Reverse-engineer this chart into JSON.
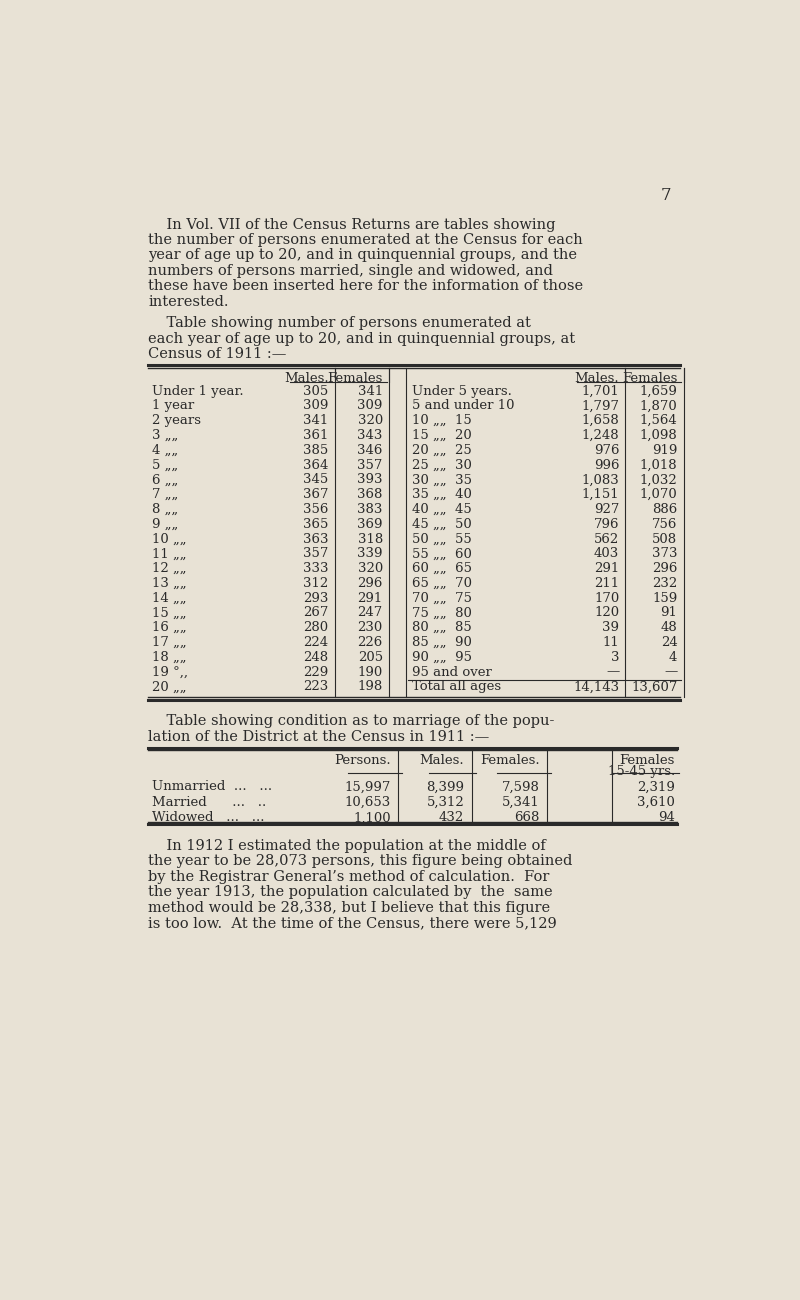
{
  "bg_color": "#e8e2d5",
  "text_color": "#2a2a2a",
  "page_number": "7",
  "intro_text_lines": [
    "    In Vol. VII of the Census Returns are tables showing",
    "the number of persons enumerated at the Census for each",
    "year of age up to 20, and in quinquennial groups, and the",
    "numbers of persons married, single and widowed, and",
    "these have been inserted here for the information of those",
    "interested."
  ],
  "table1_title_lines": [
    "    Table showing number of persons enumerated at",
    "each year of age up to 20, and in quinquennial groups, at",
    "Census of 1911 :—"
  ],
  "table1_left_rows": [
    [
      "Under 1 year.",
      "305",
      "341"
    ],
    [
      "1 year",
      "309",
      "309"
    ],
    [
      "2 years",
      "341",
      "320"
    ],
    [
      "3 „„",
      "361",
      "343"
    ],
    [
      "4 „„",
      "385",
      "346"
    ],
    [
      "5 „„",
      "364",
      "357"
    ],
    [
      "6 „„",
      "345",
      "393"
    ],
    [
      "7 „„",
      "367",
      "368"
    ],
    [
      "8 „„",
      "356",
      "383"
    ],
    [
      "9 „„",
      "365",
      "369"
    ],
    [
      "10 „„",
      "363",
      "318"
    ],
    [
      "11 „„",
      "357",
      "339"
    ],
    [
      "12 „„",
      "333",
      "320"
    ],
    [
      "13 „„",
      "312",
      "296"
    ],
    [
      "14 „„",
      "293",
      "291"
    ],
    [
      "15 „„",
      "267",
      "247"
    ],
    [
      "16 „„",
      "280",
      "230"
    ],
    [
      "17 „„",
      "224",
      "226"
    ],
    [
      "18 „„",
      "248",
      "205"
    ],
    [
      "19 °,,",
      "229",
      "190"
    ],
    [
      "20 „„",
      "223",
      "198"
    ]
  ],
  "table1_right_rows": [
    [
      "Under 5 years.",
      "1,701",
      "1,659"
    ],
    [
      "5 and under 10",
      "1,797",
      "1,870"
    ],
    [
      "10 „„  15",
      "1,658",
      "1,564"
    ],
    [
      "15 „„  20",
      "1,248",
      "1,098"
    ],
    [
      "20 „„  25",
      "976",
      "919"
    ],
    [
      "25 „„  30",
      "996",
      "1,018"
    ],
    [
      "30 „„  35",
      "1,083",
      "1,032"
    ],
    [
      "35 „„  40",
      "1,151",
      "1,070"
    ],
    [
      "40 „„  45",
      "927",
      "886"
    ],
    [
      "45 „„  50",
      "796",
      "756"
    ],
    [
      "50 „„  55",
      "562",
      "508"
    ],
    [
      "55 „„  60",
      "403",
      "373"
    ],
    [
      "60 „„  65",
      "291",
      "296"
    ],
    [
      "65 „„  70",
      "211",
      "232"
    ],
    [
      "70 „„  75",
      "170",
      "159"
    ],
    [
      "75 „„  80",
      "120",
      "91"
    ],
    [
      "80 „„  85",
      "39",
      "48"
    ],
    [
      "85 „„  90",
      "11",
      "24"
    ],
    [
      "90 „„  95",
      "3",
      "4"
    ],
    [
      "95 and over",
      "—",
      "—"
    ],
    [
      "Total all ages",
      "14,143",
      "13,607"
    ]
  ],
  "table2_title_lines": [
    "    Table showing condition as to marriage of the popu-",
    "lation of the District at the Census in 1911 :—"
  ],
  "table2_rows": [
    [
      "Unmarried  ...   ...",
      "15,997",
      "8,399",
      "7,598",
      "2,319"
    ],
    [
      "Married      ...   ..",
      "10,653",
      "5,312",
      "5,341",
      "3,610"
    ],
    [
      "Widowed   ...   ...",
      "1,100",
      "432",
      "668",
      "94"
    ]
  ],
  "closing_text_lines": [
    "    In 1912 I estimated the population at the middle of",
    "the year to be 28,073 persons, this figure being obtained",
    "by the Registrar General’s method of calculation.  For",
    "the year 1913, the population calculated by  the  same",
    "method would be 28,338, but I believe that this figure",
    "is too low.  At the time of the Census, there were 5,129"
  ]
}
